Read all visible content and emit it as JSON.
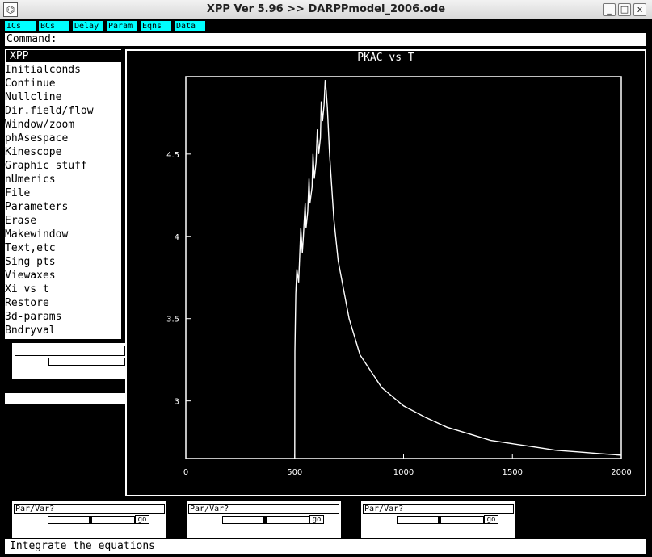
{
  "window": {
    "title": "XPP Ver 5.96 >> DARPPmodel_2006.ode",
    "buttons": {
      "minimize": "_",
      "maximize": "□",
      "close": "x"
    }
  },
  "top_buttons": [
    "ICs",
    "BCs",
    "Delay",
    "Param",
    "Eqns",
    "Data"
  ],
  "command": {
    "label": "Command:",
    "value": ""
  },
  "menu": {
    "title": "XPP",
    "items": [
      "Initialconds",
      "Continue",
      "Nullcline",
      "Dir.field/flow",
      "Window/zoom",
      "phAsespace",
      "Kinescope",
      "Graphic stuff",
      "nUmerics",
      "File",
      "Parameters",
      "Erase",
      "Makewindow",
      "Text,etc",
      "Sing pts",
      "Viewaxes",
      "Xi vs t",
      "Restore",
      "3d-params",
      "Bndryval"
    ]
  },
  "sliders": [
    {
      "label": "Par/Var?",
      "go": "go"
    },
    {
      "label": "Par/Var?",
      "go": "go"
    },
    {
      "label": "Par/Var?",
      "go": "go"
    }
  ],
  "status": "Integrate the equations",
  "colors": {
    "accent": "#00ffff",
    "background": "#000000",
    "panel": "#ffffff"
  },
  "chart_data": {
    "type": "line",
    "title": "PKAC vs T",
    "xlabel": "",
    "ylabel": "",
    "xlim": [
      0,
      2000
    ],
    "ylim": [
      2.65,
      4.97
    ],
    "xticks": [
      0,
      500,
      1000,
      1500,
      2000
    ],
    "xtick_labels": [
      "0",
      "500",
      "1000",
      "1500",
      "2000"
    ],
    "yticks": [
      3,
      3.5,
      4,
      4.5
    ],
    "ytick_labels": [
      "3",
      "3.5",
      "4",
      "4.5"
    ],
    "grid": false,
    "series": [
      {
        "x": [
          500,
          501,
          505,
          510,
          518,
          522,
          528,
          535,
          540,
          548,
          552,
          560,
          566,
          570,
          580,
          584,
          590,
          598,
          604,
          610,
          618,
          622,
          628,
          635,
          640,
          645,
          650,
          660,
          680,
          700,
          750,
          800,
          900,
          1000,
          1100,
          1200,
          1300,
          1400,
          1500,
          1600,
          1700,
          1800,
          1900,
          2000
        ],
        "y": [
          2.65,
          3.3,
          3.65,
          3.8,
          3.72,
          3.85,
          4.05,
          3.9,
          4.0,
          4.2,
          4.05,
          4.15,
          4.35,
          4.2,
          4.3,
          4.5,
          4.35,
          4.45,
          4.65,
          4.5,
          4.6,
          4.82,
          4.7,
          4.8,
          4.95,
          4.88,
          4.78,
          4.5,
          4.1,
          3.85,
          3.5,
          3.28,
          3.08,
          2.97,
          2.9,
          2.84,
          2.8,
          2.76,
          2.74,
          2.72,
          2.7,
          2.69,
          2.68,
          2.67
        ]
      }
    ]
  }
}
